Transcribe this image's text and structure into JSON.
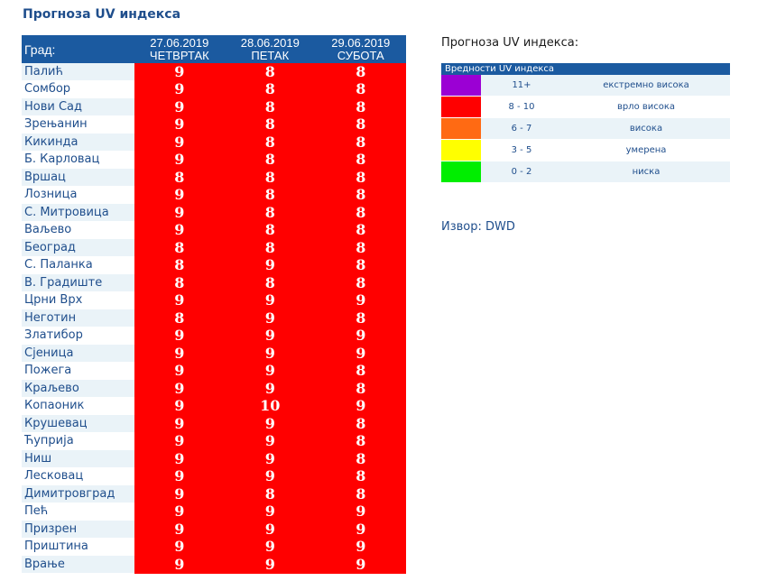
{
  "title": "Прогноза UV индекса",
  "table": {
    "city_header": "Град:",
    "days": [
      {
        "date": "27.06.2019",
        "day": "ЧЕТВРТАК"
      },
      {
        "date": "28.06.2019",
        "day": "ПЕТАК"
      },
      {
        "date": "29.06.2019",
        "day": "СУБОТА"
      }
    ],
    "value_color": "#ff0000",
    "rows": [
      {
        "city": "Палић",
        "v": [
          9,
          8,
          8
        ]
      },
      {
        "city": "Сомбор",
        "v": [
          9,
          8,
          8
        ]
      },
      {
        "city": "Нови Сад",
        "v": [
          9,
          8,
          8
        ]
      },
      {
        "city": "Зрењанин",
        "v": [
          9,
          8,
          8
        ]
      },
      {
        "city": "Кикинда",
        "v": [
          9,
          8,
          8
        ]
      },
      {
        "city": "Б. Карловац",
        "v": [
          9,
          8,
          8
        ]
      },
      {
        "city": "Вршац",
        "v": [
          8,
          8,
          8
        ]
      },
      {
        "city": "Лозница",
        "v": [
          9,
          8,
          8
        ]
      },
      {
        "city": "С. Митровица",
        "v": [
          9,
          8,
          8
        ]
      },
      {
        "city": "Ваљево",
        "v": [
          9,
          8,
          8
        ]
      },
      {
        "city": "Београд",
        "v": [
          8,
          8,
          8
        ]
      },
      {
        "city": "С. Паланка",
        "v": [
          8,
          9,
          8
        ]
      },
      {
        "city": "В. Градиште",
        "v": [
          8,
          8,
          8
        ]
      },
      {
        "city": "Црни Врх",
        "v": [
          9,
          9,
          9
        ]
      },
      {
        "city": "Неготин",
        "v": [
          8,
          9,
          8
        ]
      },
      {
        "city": "Златибор",
        "v": [
          9,
          9,
          9
        ]
      },
      {
        "city": "Сјеница",
        "v": [
          9,
          9,
          9
        ]
      },
      {
        "city": "Пожега",
        "v": [
          9,
          9,
          8
        ]
      },
      {
        "city": "Краљево",
        "v": [
          9,
          9,
          8
        ]
      },
      {
        "city": "Копаоник",
        "v": [
          9,
          10,
          9
        ]
      },
      {
        "city": "Крушевац",
        "v": [
          9,
          9,
          8
        ]
      },
      {
        "city": "Ћуприја",
        "v": [
          9,
          9,
          8
        ]
      },
      {
        "city": "Ниш",
        "v": [
          9,
          9,
          8
        ]
      },
      {
        "city": "Лесковац",
        "v": [
          9,
          9,
          8
        ]
      },
      {
        "city": "Димитровград",
        "v": [
          9,
          8,
          8
        ]
      },
      {
        "city": "Пећ",
        "v": [
          9,
          9,
          9
        ]
      },
      {
        "city": "Призрен",
        "v": [
          9,
          9,
          9
        ]
      },
      {
        "city": "Приштина",
        "v": [
          9,
          9,
          9
        ]
      },
      {
        "city": "Врање",
        "v": [
          9,
          9,
          9
        ]
      }
    ]
  },
  "legend": {
    "title": "Прогноза UV индекса:",
    "header": "Вредности UV индекса",
    "items": [
      {
        "range": "11+",
        "label": "екстремно висока",
        "color": "#9b00d4"
      },
      {
        "range": "8 - 10",
        "label": "врло висока",
        "color": "#ff0000"
      },
      {
        "range": "6 - 7",
        "label": "висока",
        "color": "#ff6a13"
      },
      {
        "range": "3 - 5",
        "label": "умерена",
        "color": "#ffff00"
      },
      {
        "range": "0 - 2",
        "label": "ниска",
        "color": "#00ee00"
      }
    ]
  },
  "source": "Извор: DWD"
}
